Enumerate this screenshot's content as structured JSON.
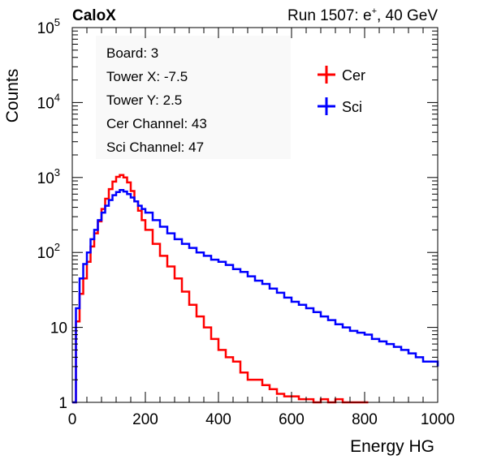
{
  "header": {
    "left": "CaloX",
    "right_prefix": "Run 1507: e",
    "right_sup": "+",
    "right_suffix": ", 40 GeV"
  },
  "info_box": {
    "lines": [
      "Board: 3",
      "Tower X: -7.5",
      "Tower Y: 2.5",
      "Cer Channel: 43",
      "Sci Channel: 47"
    ]
  },
  "colors": {
    "Cer": "#ff0000",
    "Sci": "#0000ff",
    "axis": "#000000",
    "background": "#ffffff"
  },
  "chart_data": {
    "type": "line",
    "style": "step histogram",
    "xlabel": "Energy HG",
    "ylabel": "Counts",
    "xlim": [
      0,
      1000
    ],
    "ylim": [
      1,
      100000
    ],
    "y_scale": "log",
    "x_ticks": [
      0,
      200,
      400,
      600,
      800,
      1000
    ],
    "x_tick_labels": [
      "0",
      "200",
      "400",
      "600",
      "800",
      "1000"
    ],
    "y_ticks": [
      1,
      10,
      100,
      1000,
      10000,
      100000
    ],
    "y_tick_labels": [
      {
        "base": "1",
        "exp": ""
      },
      {
        "base": "10",
        "exp": ""
      },
      {
        "base": "10",
        "exp": "2"
      },
      {
        "base": "10",
        "exp": "3"
      },
      {
        "base": "10",
        "exp": "4"
      },
      {
        "base": "10",
        "exp": "5"
      }
    ],
    "legend_position": "top-right",
    "grid": false,
    "series": [
      {
        "name": "Cer",
        "x": [
          0,
          10,
          20,
          30,
          40,
          50,
          60,
          70,
          80,
          90,
          100,
          110,
          120,
          130,
          140,
          150,
          160,
          170,
          180,
          190,
          200,
          220,
          240,
          260,
          280,
          300,
          320,
          340,
          360,
          380,
          400,
          420,
          440,
          460,
          480,
          500,
          520,
          540,
          560,
          580,
          600,
          620,
          640,
          660,
          680,
          700,
          720,
          740,
          760,
          780,
          800
        ],
        "values": [
          1,
          12,
          28,
          45,
          75,
          120,
          180,
          260,
          380,
          520,
          700,
          880,
          1020,
          1080,
          1000,
          860,
          660,
          480,
          360,
          270,
          200,
          130,
          90,
          65,
          45,
          30,
          20,
          14,
          10,
          7,
          5,
          4,
          3.5,
          2.5,
          2,
          2,
          1.7,
          1.5,
          1.3,
          1.2,
          1.2,
          1.1,
          1.1,
          1,
          1.1,
          1,
          1.1,
          1,
          1,
          1,
          1
        ]
      },
      {
        "name": "Sci",
        "x": [
          0,
          10,
          20,
          30,
          40,
          50,
          60,
          70,
          80,
          90,
          100,
          110,
          120,
          130,
          140,
          150,
          160,
          170,
          180,
          190,
          200,
          220,
          240,
          260,
          280,
          300,
          320,
          340,
          360,
          380,
          400,
          420,
          440,
          460,
          480,
          500,
          520,
          540,
          560,
          580,
          600,
          620,
          640,
          660,
          680,
          700,
          720,
          740,
          760,
          780,
          800,
          820,
          840,
          860,
          880,
          900,
          920,
          940,
          960,
          980,
          1000
        ],
        "values": [
          1,
          18,
          45,
          70,
          100,
          150,
          200,
          270,
          340,
          420,
          500,
          580,
          640,
          680,
          650,
          600,
          540,
          480,
          420,
          380,
          340,
          270,
          220,
          180,
          150,
          130,
          115,
          100,
          90,
          80,
          75,
          68,
          60,
          55,
          48,
          42,
          38,
          33,
          29,
          25,
          22,
          20,
          18,
          16,
          14,
          12.5,
          11,
          10,
          9,
          8.5,
          8,
          7,
          6.5,
          6,
          5.5,
          5,
          4.5,
          4,
          3.5,
          3.5,
          3
        ]
      }
    ]
  }
}
